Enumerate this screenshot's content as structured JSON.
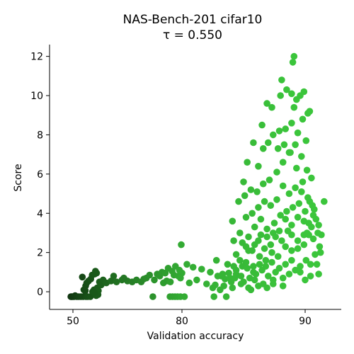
{
  "chart_data": {
    "type": "scatter",
    "title_line1": "NAS-Bench-201 cifar10",
    "title_line2": "τ = 0.550",
    "xlabel": "Validation accuracy",
    "ylabel": "Score",
    "xlim": [
      41,
      94
    ],
    "ylim": [
      -0.9,
      12.6
    ],
    "xticks": [
      50,
      80,
      90
    ],
    "xtick_labels": [
      "50",
      "80",
      "90"
    ],
    "yticks": [
      0,
      2,
      4,
      6,
      8,
      10,
      12
    ],
    "ytick_labels": [
      "0",
      "2",
      "4",
      "6",
      "8",
      "10",
      "12"
    ],
    "grid": false,
    "color_low": "#0e300e",
    "color_high": "#3bc53b",
    "points": [
      [
        49.2,
        -0.25
      ],
      [
        49.5,
        -0.25
      ],
      [
        49.9,
        -0.25
      ],
      [
        50.3,
        -0.25
      ],
      [
        50.6,
        -0.2
      ],
      [
        51.1,
        -0.25
      ],
      [
        51.6,
        -0.25
      ],
      [
        52.2,
        -0.25
      ],
      [
        52.8,
        -0.25
      ],
      [
        53.6,
        -0.25
      ],
      [
        54.1,
        -0.25
      ],
      [
        54.8,
        -0.25
      ],
      [
        52.6,
        0.75
      ],
      [
        53.4,
        0.05
      ],
      [
        53.0,
        0.1
      ],
      [
        53.5,
        0.3
      ],
      [
        53.8,
        0.45
      ],
      [
        54.3,
        0.55
      ],
      [
        54.9,
        0.65
      ],
      [
        55.3,
        0.85
      ],
      [
        56.0,
        0.9
      ],
      [
        56.5,
        0.95
      ],
      [
        56.2,
        1.05
      ],
      [
        55.4,
        0.0
      ],
      [
        55.8,
        0.1
      ],
      [
        56.3,
        0.0
      ],
      [
        56.7,
        0.2
      ],
      [
        57.3,
        0.5
      ],
      [
        57.8,
        0.35
      ],
      [
        58.3,
        0.6
      ],
      [
        57.0,
        0.05
      ],
      [
        56.9,
        -0.15
      ],
      [
        56.4,
        -0.2
      ],
      [
        55.9,
        -0.05
      ],
      [
        59.2,
        0.45
      ],
      [
        60.5,
        0.55
      ],
      [
        62.0,
        0.5
      ],
      [
        63.5,
        0.6
      ],
      [
        65.0,
        0.55
      ],
      [
        66.3,
        0.5
      ],
      [
        67.5,
        0.6
      ],
      [
        68.8,
        0.5
      ],
      [
        69.5,
        0.65
      ],
      [
        61.2,
        0.8
      ],
      [
        64.0,
        0.7
      ],
      [
        70.2,
        0.7
      ],
      [
        71.1,
        0.85
      ],
      [
        72.4,
        0.6
      ],
      [
        73.2,
        0.9
      ],
      [
        73.9,
        0.8
      ],
      [
        74.5,
        1.0
      ],
      [
        75.4,
        0.95
      ],
      [
        76.2,
        1.2
      ],
      [
        77.3,
        1.05
      ],
      [
        77.8,
        0.85
      ],
      [
        75.8,
        0.55
      ],
      [
        74.9,
        0.45
      ],
      [
        76.8,
        0.5
      ],
      [
        72.0,
        -0.25
      ],
      [
        76.7,
        -0.25
      ],
      [
        77.4,
        -0.25
      ],
      [
        78.1,
        -0.25
      ],
      [
        78.8,
        -0.25
      ],
      [
        79.6,
        -0.25
      ],
      [
        80.2,
        -0.25
      ],
      [
        82.6,
        -0.25
      ],
      [
        83.6,
        -0.25
      ],
      [
        78.2,
        1.3
      ],
      [
        79.3,
        1.1
      ],
      [
        80.0,
        0.95
      ],
      [
        80.9,
        1.25
      ],
      [
        81.6,
        1.15
      ],
      [
        82.3,
        1.0
      ],
      [
        82.9,
        0.8
      ],
      [
        83.5,
        0.65
      ],
      [
        83.8,
        0.95
      ],
      [
        84.4,
        1.1
      ],
      [
        81.2,
        0.6
      ],
      [
        82.0,
        0.4
      ],
      [
        82.7,
        0.35
      ],
      [
        83.4,
        0.3
      ],
      [
        84.1,
        0.2
      ],
      [
        79.8,
        2.4
      ],
      [
        80.6,
        0.45
      ],
      [
        79.0,
        0.8
      ],
      [
        79.6,
        0.7
      ],
      [
        80.4,
        1.4
      ],
      [
        85.6,
        0.1
      ],
      [
        86.2,
        0.3
      ],
      [
        86.9,
        0.2
      ],
      [
        87.4,
        0.4
      ],
      [
        85.0,
        0.5
      ],
      [
        85.5,
        0.7
      ],
      [
        86.0,
        0.9
      ],
      [
        86.5,
        1.1
      ],
      [
        87.0,
        0.8
      ],
      [
        87.6,
        1.0
      ],
      [
        88.2,
        0.7
      ],
      [
        88.7,
        0.9
      ],
      [
        89.2,
        1.1
      ],
      [
        89.6,
        1.3
      ],
      [
        90.1,
        1.6
      ],
      [
        90.6,
        1.4
      ],
      [
        91.1,
        1.9
      ],
      [
        85.2,
        1.5
      ],
      [
        85.8,
        1.3
      ],
      [
        86.3,
        1.8
      ],
      [
        86.8,
        1.6
      ],
      [
        87.3,
        2.0
      ],
      [
        87.8,
        1.8
      ],
      [
        88.4,
        2.3
      ],
      [
        88.9,
        2.1
      ],
      [
        89.4,
        2.6
      ],
      [
        89.9,
        2.4
      ],
      [
        90.4,
        2.9
      ],
      [
        90.9,
        2.7
      ],
      [
        91.4,
        3.0
      ],
      [
        91.8,
        2.9
      ],
      [
        84.4,
        1.9
      ],
      [
        84.9,
        2.5
      ],
      [
        85.4,
        2.8
      ],
      [
        85.9,
        3.3
      ],
      [
        86.4,
        3.7
      ],
      [
        86.9,
        3.2
      ],
      [
        87.5,
        3.5
      ],
      [
        88.0,
        3.9
      ],
      [
        88.5,
        4.1
      ],
      [
        89.0,
        4.3
      ],
      [
        89.5,
        4.5
      ],
      [
        90.0,
        4.1
      ],
      [
        90.5,
        4.6
      ],
      [
        91.0,
        4.2
      ],
      [
        84.1,
        3.6
      ],
      [
        84.6,
        4.6
      ],
      [
        85.1,
        4.9
      ],
      [
        85.6,
        5.2
      ],
      [
        86.1,
        5.1
      ],
      [
        86.6,
        5.5
      ],
      [
        87.1,
        5.7
      ],
      [
        87.7,
        6.1
      ],
      [
        88.2,
        6.6
      ],
      [
        88.7,
        7.1
      ],
      [
        89.2,
        7.5
      ],
      [
        89.7,
        6.9
      ],
      [
        90.2,
        6.2
      ],
      [
        90.7,
        5.8
      ],
      [
        85.0,
        5.6
      ],
      [
        85.3,
        6.6
      ],
      [
        85.8,
        7.6
      ],
      [
        86.2,
        6.4
      ],
      [
        86.6,
        7.3
      ],
      [
        87.0,
        7.6
      ],
      [
        87.4,
        8.0
      ],
      [
        87.9,
        8.2
      ],
      [
        88.4,
        8.3
      ],
      [
        88.9,
        8.6
      ],
      [
        89.4,
        8.1
      ],
      [
        89.8,
        8.8
      ],
      [
        90.3,
        9.1
      ],
      [
        90.1,
        7.7
      ],
      [
        86.5,
        8.5
      ],
      [
        86.9,
        9.6
      ],
      [
        87.3,
        9.4
      ],
      [
        88.0,
        10.0
      ],
      [
        88.5,
        10.3
      ],
      [
        88.9,
        10.1
      ],
      [
        89.3,
        9.8
      ],
      [
        89.9,
        10.2
      ],
      [
        90.5,
        9.2
      ],
      [
        89.1,
        9.4
      ],
      [
        88.1,
        10.8
      ],
      [
        89.6,
        10.0
      ],
      [
        89.0,
        11.7
      ],
      [
        89.1,
        12.0
      ],
      [
        87.8,
        7.3
      ],
      [
        88.3,
        7.5
      ],
      [
        88.8,
        7.1
      ],
      [
        89.3,
        6.3
      ],
      [
        89.8,
        5.6
      ],
      [
        90.3,
        4.8
      ],
      [
        90.8,
        4.4
      ],
      [
        91.2,
        3.7
      ],
      [
        91.5,
        3.4
      ],
      [
        92.1,
        4.6
      ],
      [
        91.6,
        2.3
      ],
      [
        91.7,
        2.0
      ],
      [
        91.3,
        1.4
      ],
      [
        91.5,
        0.9
      ],
      [
        89.6,
        1.0
      ],
      [
        90.0,
        0.6
      ],
      [
        90.6,
        0.8
      ],
      [
        88.2,
        0.3
      ],
      [
        87.4,
        0.6
      ],
      [
        86.6,
        0.4
      ],
      [
        85.9,
        0.6
      ],
      [
        85.4,
        0.2
      ],
      [
        84.8,
        0.4
      ],
      [
        84.0,
        0.5
      ],
      [
        83.1,
        0.1
      ],
      [
        82.5,
        0.2
      ],
      [
        88.9,
        2.9
      ],
      [
        88.6,
        3.1
      ],
      [
        88.1,
        2.6
      ],
      [
        87.6,
        2.8
      ],
      [
        87.2,
        2.4
      ],
      [
        86.7,
        2.2
      ],
      [
        86.2,
        2.6
      ],
      [
        85.7,
        2.1
      ],
      [
        85.2,
        2.3
      ],
      [
        84.7,
        1.6
      ],
      [
        84.2,
        1.3
      ],
      [
        83.7,
        1.4
      ],
      [
        83.2,
        0.8
      ],
      [
        82.8,
        1.6
      ],
      [
        89.9,
        3.6
      ],
      [
        89.4,
        3.8
      ],
      [
        88.9,
        3.4
      ],
      [
        88.4,
        3.7
      ],
      [
        87.9,
        3.1
      ],
      [
        87.4,
        3.0
      ],
      [
        86.9,
        2.8
      ],
      [
        86.4,
        2.9
      ],
      [
        85.9,
        2.4
      ],
      [
        85.4,
        2.1
      ],
      [
        84.9,
        1.3
      ],
      [
        84.4,
        0.9
      ],
      [
        83.9,
        0.7
      ],
      [
        83.3,
        0.9
      ],
      [
        90.9,
        3.9
      ],
      [
        90.4,
        3.5
      ],
      [
        89.9,
        2.9
      ],
      [
        89.4,
        2.2
      ],
      [
        88.9,
        1.6
      ],
      [
        88.4,
        1.4
      ],
      [
        87.9,
        1.2
      ],
      [
        87.3,
        1.5
      ],
      [
        86.8,
        1.3
      ],
      [
        86.3,
        1.4
      ],
      [
        85.8,
        1.0
      ],
      [
        85.3,
        1.2
      ],
      [
        84.8,
        0.8
      ],
      [
        84.3,
        0.7
      ],
      [
        90.7,
        3.3
      ],
      [
        90.2,
        3.0
      ],
      [
        89.7,
        5.1
      ],
      [
        89.2,
        5.3
      ],
      [
        88.7,
        5.0
      ],
      [
        88.2,
        5.4
      ],
      [
        87.7,
        4.7
      ],
      [
        87.2,
        4.4
      ],
      [
        86.7,
        4.6
      ],
      [
        86.2,
        4.3
      ],
      [
        85.7,
        4.0
      ],
      [
        85.2,
        3.8
      ],
      [
        84.7,
        3.0
      ],
      [
        84.2,
        2.6
      ]
    ]
  }
}
